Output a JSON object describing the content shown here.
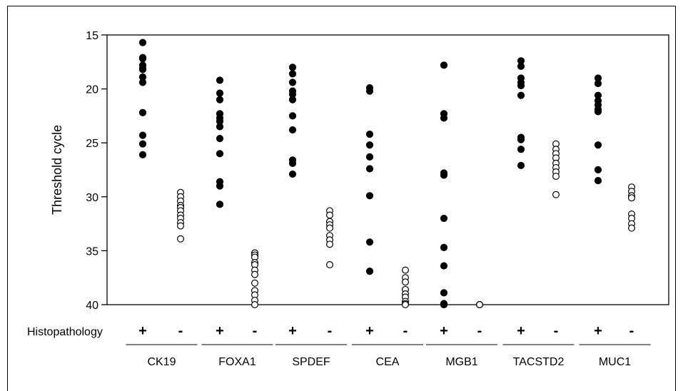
{
  "chart_data": {
    "type": "scatter",
    "ylabel": "Threshold cycle",
    "y_inverted": true,
    "ylim": [
      15,
      40
    ],
    "yticks": [
      15,
      20,
      25,
      30,
      35,
      40
    ],
    "row_label": "Histopathology",
    "sign_labels": [
      "+",
      "-"
    ],
    "marker_styles": {
      "+": "filled-black-circle",
      "-": "open-circle"
    },
    "groups": [
      {
        "gene": "CK19",
        "positive": [
          15.7,
          17.1,
          17.2,
          17.8,
          18.1,
          18.2,
          18.9,
          19.4,
          22.2,
          24.3,
          25.1,
          26.1
        ],
        "negative": [
          29.6,
          30.0,
          30.4,
          30.8,
          31.0,
          31.3,
          31.7,
          32.0,
          32.4,
          32.7,
          33.9
        ]
      },
      {
        "gene": "FOXA1",
        "positive": [
          19.2,
          20.4,
          21.0,
          22.3,
          22.7,
          23.0,
          23.5,
          24.6,
          26.0,
          28.6,
          29.0,
          30.7
        ],
        "negative": [
          35.2,
          35.4,
          35.6,
          36.1,
          36.3,
          36.8,
          37.2,
          38.0,
          38.7,
          39.1,
          39.6,
          40.0
        ]
      },
      {
        "gene": "SPDEF",
        "positive": [
          18.0,
          18.6,
          19.4,
          20.2,
          20.5,
          21.0,
          22.5,
          23.8,
          26.6,
          26.9,
          27.9
        ],
        "negative": [
          31.3,
          31.7,
          32.3,
          32.6,
          32.9,
          33.6,
          34.0,
          34.4,
          36.3
        ]
      },
      {
        "gene": "CEA",
        "positive": [
          19.9,
          20.2,
          24.2,
          25.2,
          26.3,
          27.4,
          29.9,
          34.2,
          36.9
        ],
        "negative": [
          36.8,
          37.5,
          37.9,
          38.6,
          39.0,
          39.3,
          39.7,
          39.9,
          40.0
        ]
      },
      {
        "gene": "MGB1",
        "positive": [
          17.8,
          22.3,
          22.7,
          27.8,
          28.0,
          32.0,
          34.7,
          36.4,
          38.9,
          39.9,
          40.0
        ],
        "negative": [
          40.0,
          40.0,
          40.0
        ]
      },
      {
        "gene": "TACSTD2",
        "positive": [
          17.4,
          17.9,
          19.0,
          19.4,
          19.7,
          20.6,
          24.5,
          24.7,
          25.6,
          27.1
        ],
        "negative": [
          25.1,
          25.6,
          26.0,
          26.4,
          26.9,
          27.3,
          27.7,
          28.1,
          29.8
        ]
      },
      {
        "gene": "MUC1",
        "positive": [
          19.0,
          19.5,
          20.6,
          21.1,
          21.5,
          21.9,
          22.1,
          25.2,
          27.5,
          28.5
        ],
        "negative": [
          29.1,
          29.5,
          29.9,
          30.1,
          31.6,
          32.0,
          32.5,
          32.9
        ]
      }
    ]
  }
}
